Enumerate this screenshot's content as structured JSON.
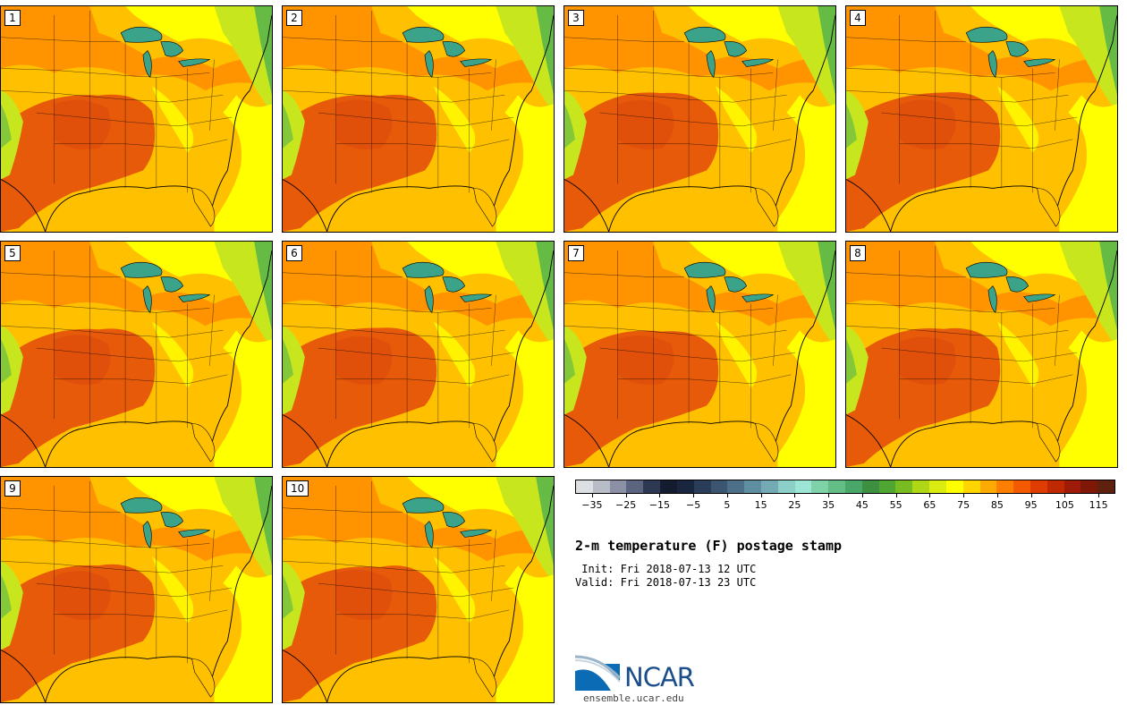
{
  "panels": [
    "1",
    "2",
    "3",
    "4",
    "5",
    "6",
    "7",
    "8",
    "9",
    "10"
  ],
  "colorbar": {
    "colors": [
      "#dde0e3",
      "#b8bcc6",
      "#8b90a4",
      "#5c6580",
      "#2d3852",
      "#141c30",
      "#1a2640",
      "#2a3d58",
      "#3b5570",
      "#4d7088",
      "#5f8ea0",
      "#74aab4",
      "#8ccfc8",
      "#9de6d6",
      "#7fd1a8",
      "#62bd86",
      "#4aa76a",
      "#3c9040",
      "#4fa632",
      "#78bc20",
      "#b0d618",
      "#dbec10",
      "#ffff00",
      "#ffd500",
      "#ffaa00",
      "#ff8000",
      "#f55a00",
      "#e03c00",
      "#c02800",
      "#a01a08",
      "#801808",
      "#602010"
    ],
    "ticks": [
      -35,
      -25,
      -15,
      -5,
      5,
      15,
      25,
      35,
      45,
      55,
      65,
      75,
      85,
      95,
      105,
      115
    ],
    "tick_labels": [
      "−35",
      "−25",
      "−15",
      "−5",
      "5",
      "15",
      "25",
      "35",
      "45",
      "55",
      "65",
      "75",
      "85",
      "95",
      "105",
      "115"
    ],
    "min": -40,
    "max": 120
  },
  "title": "2-m temperature (F) postage stamp",
  "init": " Init: Fri 2018-07-13 12 UTC",
  "valid": "Valid: Fri 2018-07-13 23 UTC",
  "logo": {
    "text": "NCAR",
    "site": "ensemble.ucar.edu"
  },
  "colors": {
    "hot": "#e65a0a",
    "warm": "#ff8c00",
    "mild": "#ffc000",
    "cool": "#ffff00",
    "greenish": "#c8e61e",
    "green": "#66bb44",
    "lake": "#3aa38a"
  }
}
